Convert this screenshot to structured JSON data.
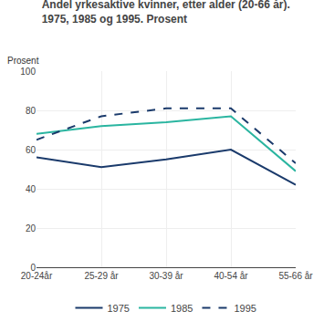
{
  "chart_data": {
    "type": "line",
    "title": "Andel yrkesaktive kvinner, etter alder (20-66 år).",
    "subtitle": "1975, 1985 og 1995. Prosent",
    "ylabel": "Prosent",
    "categories": [
      "20-24år",
      "25-29 år",
      "30-39 år",
      "40-54 år",
      "55-66 år"
    ],
    "series": [
      {
        "name": "1975",
        "color": "#1a3a6b",
        "line_style": "solid",
        "values": [
          56,
          51,
          55,
          60,
          42
        ]
      },
      {
        "name": "1985",
        "color": "#2ab5a0",
        "line_style": "solid",
        "values": [
          68,
          72,
          74,
          77,
          49
        ]
      },
      {
        "name": "1995",
        "color": "#1a3a6b",
        "line_style": "dashed",
        "values": [
          65,
          77,
          81,
          81,
          53
        ]
      }
    ],
    "ylim": [
      0,
      100
    ],
    "yticks": [
      0,
      20,
      40,
      60,
      80,
      100
    ],
    "grid": true,
    "legend": "bottom"
  }
}
